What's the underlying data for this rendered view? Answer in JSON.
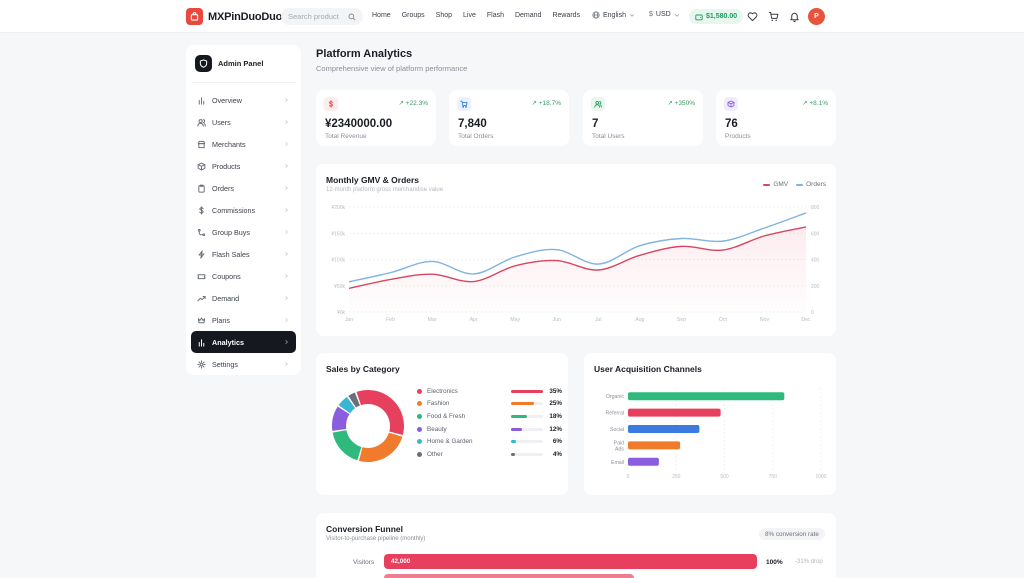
{
  "brand": {
    "name": "MXPinDuoDuo"
  },
  "search": {
    "placeholder": "Search product"
  },
  "nav": {
    "links": [
      "Home",
      "Groups",
      "Shop",
      "Live",
      "Flash",
      "Demand",
      "Rewards"
    ]
  },
  "language": {
    "label": "English"
  },
  "currency": {
    "label": "USD"
  },
  "wallet": {
    "balance": "$1,580.00"
  },
  "user": {
    "initial": "P"
  },
  "sidebar": {
    "title": "Admin Panel",
    "items": [
      {
        "label": "Overview",
        "icon": "bar-chart-icon"
      },
      {
        "label": "Users",
        "icon": "users-icon"
      },
      {
        "label": "Merchants",
        "icon": "store-icon"
      },
      {
        "label": "Products",
        "icon": "box-icon"
      },
      {
        "label": "Orders",
        "icon": "clipboard-icon"
      },
      {
        "label": "Commissions",
        "icon": "dollar-icon"
      },
      {
        "label": "Group Buys",
        "icon": "share-icon"
      },
      {
        "label": "Flash Sales",
        "icon": "lightning-icon"
      },
      {
        "label": "Coupons",
        "icon": "ticket-icon"
      },
      {
        "label": "Demand",
        "icon": "trend-icon"
      },
      {
        "label": "Plans",
        "icon": "crown-icon"
      },
      {
        "label": "Analytics",
        "icon": "analytics-icon",
        "active": true
      },
      {
        "label": "Settings",
        "icon": "gear-icon"
      }
    ]
  },
  "page": {
    "title": "Platform Analytics",
    "subtitle": "Comprehensive view of platform performance"
  },
  "stats": [
    {
      "value": "¥2340000.00",
      "label": "Total Revenue",
      "delta": "+22.3%",
      "icon": "dollar-icon",
      "color": "#e8484a",
      "bg": "#fdecec"
    },
    {
      "value": "7,840",
      "label": "Total Orders",
      "delta": "+18.7%",
      "icon": "cart-icon",
      "color": "#3b7be0",
      "bg": "#eaf1fc"
    },
    {
      "value": "7",
      "label": "Total Users",
      "delta": "+350%",
      "icon": "users-icon",
      "color": "#2ba36a",
      "bg": "#e8f6ee"
    },
    {
      "value": "76",
      "label": "Products",
      "delta": "+8.1%",
      "icon": "box-icon",
      "color": "#8a5ce0",
      "bg": "#f1ebfc"
    }
  ],
  "gmv_card": {
    "title": "Monthly GMV & Orders",
    "subtitle": "12-month platform gross merchandise value",
    "legend": [
      "GMV",
      "Orders"
    ]
  },
  "category_card": {
    "title": "Sales by Category"
  },
  "channels_card": {
    "title": "User Acquisition Channels"
  },
  "funnel": {
    "title": "Conversion Funnel",
    "subtitle": "Visitor-to-purchase pipeline (monthly)",
    "badge": "8% conversion rate",
    "rows": [
      {
        "label": "Visitors",
        "value": "42,000",
        "pct": "100%",
        "drop": "-31% drop"
      }
    ]
  },
  "chart_data": [
    {
      "type": "line",
      "title": "Monthly GMV & Orders",
      "x": [
        "Jan",
        "Feb",
        "Mar",
        "Apr",
        "May",
        "Jun",
        "Jul",
        "Aug",
        "Sep",
        "Oct",
        "Nov",
        "Dec"
      ],
      "y_left_ticks": [
        "¥0k",
        "¥50k",
        "¥100k",
        "¥150k",
        "¥200k"
      ],
      "y_right_ticks": [
        "0",
        "200",
        "400",
        "600",
        "800"
      ],
      "ylim_left": [
        0,
        200000
      ],
      "ylim_right": [
        0,
        800
      ],
      "series": [
        {
          "name": "GMV",
          "axis": "left",
          "color": "#d94461",
          "values": [
            45000,
            62000,
            72000,
            58000,
            88000,
            98000,
            80000,
            108000,
            125000,
            118000,
            145000,
            162000
          ]
        },
        {
          "name": "Orders",
          "axis": "right",
          "color": "#7fb3e0",
          "values": [
            230,
            300,
            385,
            290,
            420,
            475,
            365,
            505,
            560,
            540,
            640,
            755
          ]
        }
      ]
    },
    {
      "type": "pie",
      "title": "Sales by Category",
      "categories": [
        "Electronics",
        "Fashion",
        "Food & Fresh",
        "Beauty",
        "Home & Garden",
        "Other"
      ],
      "values": [
        35,
        25,
        18,
        12,
        6,
        4
      ],
      "labels": [
        "35%",
        "25%",
        "18%",
        "12%",
        "6%",
        "4%"
      ],
      "colors": [
        "#e6405e",
        "#f07b2c",
        "#2fb97c",
        "#8a5ce0",
        "#37b6d6",
        "#6b7078"
      ]
    },
    {
      "type": "bar",
      "orientation": "horizontal",
      "title": "User Acquisition Channels",
      "categories": [
        "Organic",
        "Referral",
        "Social",
        "Paid Ads",
        "Email"
      ],
      "values": [
        810,
        480,
        370,
        270,
        160
      ],
      "colors": [
        "#2fb97c",
        "#e6405e",
        "#3b7be0",
        "#f07b2c",
        "#8a5ce0"
      ],
      "x_ticks": [
        "0",
        "250",
        "500",
        "750",
        "1000"
      ],
      "xlim": [
        0,
        1000
      ]
    }
  ]
}
